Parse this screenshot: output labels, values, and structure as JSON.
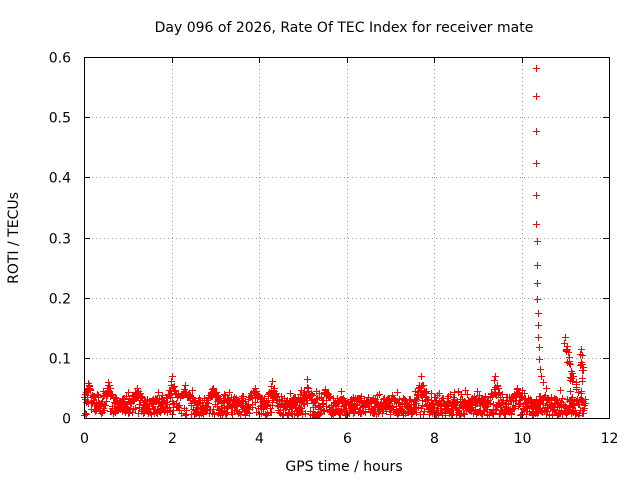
{
  "chart_data": {
    "type": "scatter",
    "title": "Day 096 of 2026, Rate Of TEC Index for receiver mate",
    "xlabel": "GPS time / hours",
    "ylabel": "ROTI / TECUs",
    "xlim": [
      0,
      12
    ],
    "ylim": [
      0,
      0.6
    ],
    "xticks": [
      0,
      2,
      4,
      6,
      8,
      10,
      12
    ],
    "xtick_labels": [
      "0",
      "2",
      "4",
      "6",
      "8",
      "10",
      "12"
    ],
    "yticks": [
      0,
      0.1,
      0.2,
      0.3,
      0.4,
      0.5,
      0.6
    ],
    "ytick_labels": [
      "0",
      "0.1",
      "0.2",
      "0.3",
      "0.4",
      "0.5",
      "0.6"
    ],
    "grid": true,
    "marker": "+",
    "color": "#ff0000",
    "series": [
      {
        "name": "ROTI",
        "x_range_hours": [
          0,
          11.45
        ],
        "baseline_band": [
          0.005,
          0.035
        ],
        "bump_peaks": [
          {
            "x": 0.1,
            "y": 0.058
          },
          {
            "x": 0.55,
            "y": 0.06
          },
          {
            "x": 1.2,
            "y": 0.05
          },
          {
            "x": 2.0,
            "y": 0.07
          },
          {
            "x": 2.3,
            "y": 0.055
          },
          {
            "x": 2.95,
            "y": 0.05
          },
          {
            "x": 3.9,
            "y": 0.05
          },
          {
            "x": 4.3,
            "y": 0.062
          },
          {
            "x": 5.1,
            "y": 0.065
          },
          {
            "x": 5.5,
            "y": 0.048
          },
          {
            "x": 7.7,
            "y": 0.07
          },
          {
            "x": 9.4,
            "y": 0.07
          },
          {
            "x": 9.9,
            "y": 0.05
          }
        ],
        "spike_points": [
          {
            "x": 10.32,
            "y": 0.581
          },
          {
            "x": 10.32,
            "y": 0.535
          },
          {
            "x": 10.33,
            "y": 0.477
          },
          {
            "x": 10.33,
            "y": 0.424
          },
          {
            "x": 10.34,
            "y": 0.371
          },
          {
            "x": 10.34,
            "y": 0.323
          },
          {
            "x": 10.35,
            "y": 0.294
          },
          {
            "x": 10.35,
            "y": 0.255
          },
          {
            "x": 10.36,
            "y": 0.225
          },
          {
            "x": 10.36,
            "y": 0.197
          },
          {
            "x": 10.37,
            "y": 0.175
          },
          {
            "x": 10.37,
            "y": 0.155
          },
          {
            "x": 10.38,
            "y": 0.135
          },
          {
            "x": 10.39,
            "y": 0.118
          },
          {
            "x": 10.4,
            "y": 0.098
          },
          {
            "x": 10.42,
            "y": 0.082
          },
          {
            "x": 10.45,
            "y": 0.07
          },
          {
            "x": 10.5,
            "y": 0.06
          },
          {
            "x": 10.55,
            "y": 0.05
          }
        ],
        "late_clusters": [
          {
            "x": 11.0,
            "y": 0.135
          },
          {
            "x": 11.03,
            "y": 0.12
          },
          {
            "x": 11.06,
            "y": 0.11
          },
          {
            "x": 11.1,
            "y": 0.09
          },
          {
            "x": 11.15,
            "y": 0.075
          },
          {
            "x": 11.35,
            "y": 0.115
          },
          {
            "x": 11.38,
            "y": 0.105
          },
          {
            "x": 11.4,
            "y": 0.085
          },
          {
            "x": 11.25,
            "y": 0.06
          }
        ]
      }
    ]
  }
}
